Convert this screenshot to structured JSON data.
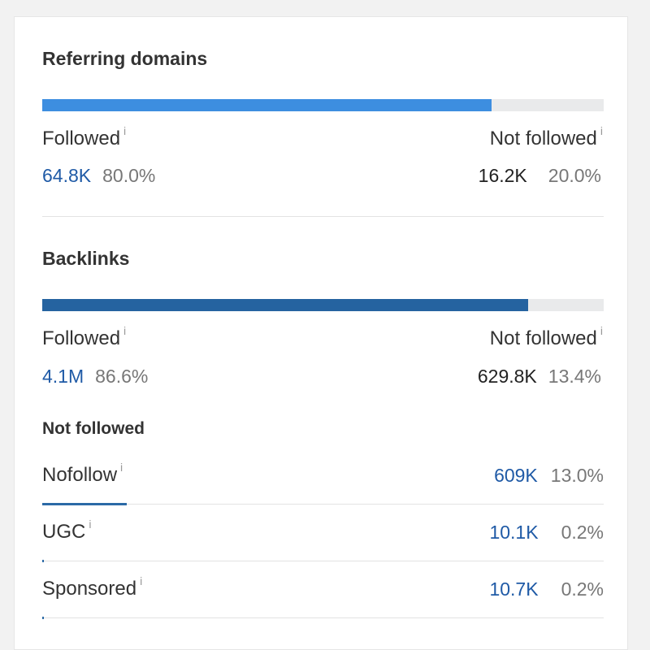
{
  "referring_domains": {
    "title": "Referring domains",
    "followed_fraction": 0.8,
    "bar_color": "#3d8ee0",
    "followed": {
      "label": "Followed",
      "value": "64.8K",
      "percent": "80.0%"
    },
    "not_followed": {
      "label": "Not followed",
      "value": "16.2K",
      "percent": "20.0%"
    }
  },
  "backlinks": {
    "title": "Backlinks",
    "followed_fraction": 0.866,
    "bar_color": "#2563a0",
    "followed": {
      "label": "Followed",
      "value": "4.1M",
      "percent": "86.6%"
    },
    "not_followed": {
      "label": "Not followed",
      "value": "629.8K",
      "percent": "13.4%"
    }
  },
  "not_followed_breakdown": {
    "title": "Not followed",
    "rows": [
      {
        "label": "Nofollow",
        "value": "609K",
        "percent": "13.0%",
        "fraction": 0.13
      },
      {
        "label": "UGC",
        "value": "10.1K",
        "percent": "0.2%",
        "fraction": 0.002
      },
      {
        "label": "Sponsored",
        "value": "10.7K",
        "percent": "0.2%",
        "fraction": 0.002
      }
    ]
  },
  "info_icon": "i",
  "colors": {
    "link_blue": "#1f5aa6",
    "track_gray": "#e9eaeb"
  }
}
